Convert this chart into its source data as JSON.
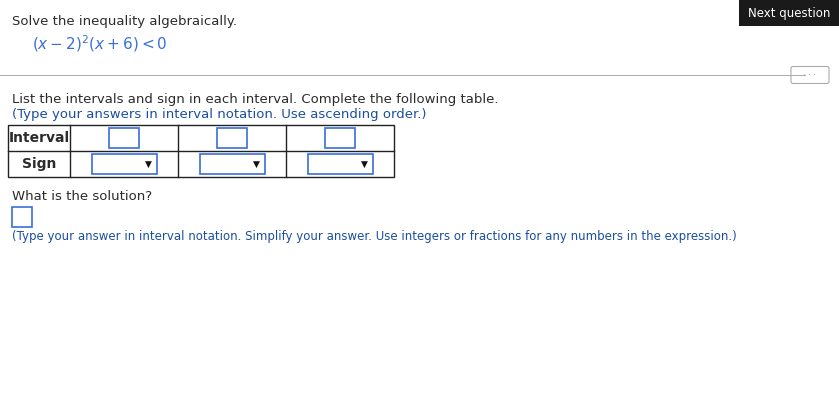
{
  "title": "Solve the inequality algebraically.",
  "instruction1": "List the intervals and sign in each interval. Complete the following table.",
  "instruction2": "(Type your answers in interval notation. Use ascending order.)",
  "solution_label": "What is the solution?",
  "solution_note": "(Type your answer in interval notation. Simplify your answer. Use integers or fractions for any numbers in the expression.)",
  "next_button_text": "Next question",
  "bg_color": "#ffffff",
  "text_color_black": "#2b2b2b",
  "text_color_blue": "#1a4fa0",
  "button_bg": "#1a1a1a",
  "button_text": "#ffffff",
  "separator_color": "#aaaaaa",
  "table_border_color": "#222222",
  "input_border_color": "#3a6fd8",
  "dropdown_border_color": "#3a6fd8",
  "eq_color": "#3a6fd8",
  "title_fontsize": 9.5,
  "eq_fontsize": 11,
  "body_fontsize": 9.5,
  "bold_fontsize": 10,
  "note_fontsize": 8.5
}
